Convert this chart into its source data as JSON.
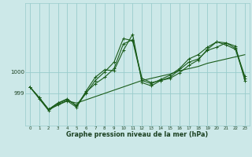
{
  "title": "Graphe pression niveau de la mer (hPa)",
  "bg_color": "#cce8e8",
  "grid_color": "#99cccc",
  "line_color": "#1a5c1a",
  "text_color": "#1a4020",
  "yticks": [
    999,
    1000
  ],
  "xticks": [
    0,
    1,
    2,
    3,
    4,
    5,
    6,
    7,
    8,
    9,
    10,
    11,
    12,
    13,
    14,
    15,
    16,
    17,
    18,
    19,
    20,
    21,
    22,
    23
  ],
  "xlim": [
    -0.5,
    23.5
  ],
  "ylim": [
    997.5,
    1003.2
  ],
  "series_straight": [
    999.3,
    998.8,
    998.25,
    998.45,
    998.65,
    998.55,
    998.7,
    998.85,
    999.0,
    999.15,
    999.3,
    999.45,
    999.6,
    999.7,
    999.8,
    999.9,
    1000.05,
    1000.15,
    1000.25,
    1000.4,
    1000.5,
    1000.6,
    1000.7,
    1000.8
  ],
  "series_a": [
    999.3,
    998.8,
    998.25,
    998.55,
    998.7,
    998.45,
    999.05,
    999.45,
    999.75,
    1000.15,
    1001.3,
    1001.5,
    999.7,
    999.5,
    999.6,
    999.7,
    999.95,
    1000.3,
    1000.55,
    1001.05,
    1001.4,
    1001.25,
    1001.05,
    999.7
  ],
  "series_b": [
    999.3,
    998.8,
    998.25,
    998.55,
    998.75,
    998.4,
    999.0,
    999.6,
    1000.0,
    1000.45,
    1001.55,
    1001.45,
    999.6,
    999.45,
    999.65,
    999.85,
    1000.15,
    1000.6,
    1000.8,
    1001.15,
    1001.4,
    1001.35,
    1001.1,
    999.8
  ],
  "series_c": [
    999.3,
    998.75,
    998.2,
    998.5,
    998.65,
    998.35,
    999.1,
    999.75,
    1000.1,
    1000.05,
    1001.0,
    1001.75,
    999.5,
    999.35,
    999.6,
    999.75,
    1000.1,
    1000.45,
    1000.6,
    1001.0,
    1001.15,
    1001.35,
    1001.2,
    999.6
  ]
}
